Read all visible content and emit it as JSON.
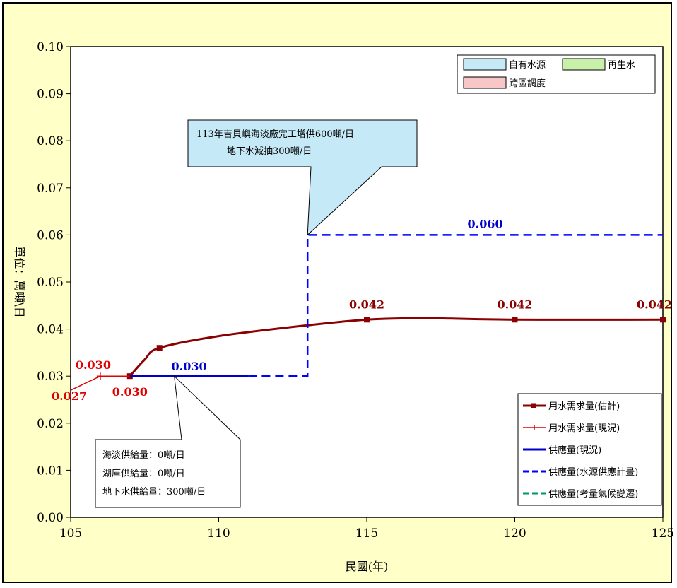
{
  "chart_data": {
    "type": "line",
    "xlabel": "民國(年)",
    "ylabel": "單位：萬噸\\日",
    "xlim": [
      105,
      125
    ],
    "ylim": [
      0,
      0.1
    ],
    "xticks": [
      "105",
      "110",
      "115",
      "120",
      "125"
    ],
    "yticks": [
      "0.00",
      "0.01",
      "0.02",
      "0.03",
      "0.04",
      "0.05",
      "0.06",
      "0.07",
      "0.08",
      "0.09",
      "0.10"
    ],
    "grid": false,
    "legend_position": "bottom-right",
    "series": [
      {
        "name": "用水需求量(估計)",
        "color": "#8b0000",
        "style": "solid",
        "points": [
          [
            107,
            0.03
          ],
          [
            107.5,
            0.0335
          ],
          [
            108,
            0.036
          ],
          [
            110,
            0.0385
          ],
          [
            113,
            0.0408
          ],
          [
            115,
            0.042
          ],
          [
            117,
            0.0423
          ],
          [
            120,
            0.042
          ],
          [
            125,
            0.042
          ]
        ],
        "markers": [
          [
            107,
            0.03
          ],
          [
            108,
            0.036
          ],
          [
            115,
            0.042
          ],
          [
            120,
            0.042
          ],
          [
            125,
            0.042
          ]
        ]
      },
      {
        "name": "用水需求量(現況)",
        "color": "#e00000",
        "style": "solid",
        "points": [
          [
            105,
            0.027
          ],
          [
            106,
            0.03
          ],
          [
            107,
            0.03
          ]
        ],
        "markers": [
          [
            106,
            0.03
          ]
        ]
      },
      {
        "name": "供應量(現況)",
        "color": "#0000cc",
        "style": "solid",
        "points": [
          [
            107,
            0.03
          ],
          [
            111,
            0.03
          ]
        ]
      },
      {
        "name": "供應量(水源供應計畫)",
        "color": "#0000ff",
        "style": "dashed",
        "points": [
          [
            111,
            0.03
          ],
          [
            113,
            0.03
          ],
          [
            113,
            0.06
          ],
          [
            125,
            0.06
          ]
        ]
      },
      {
        "name": "供應量(考量氣候變遷)",
        "color": "#009966",
        "style": "dashed",
        "points": []
      }
    ],
    "data_labels": [
      {
        "text": "0.030",
        "x": 106,
        "y": 0.03,
        "color": "#e00000",
        "dx": -10,
        "dy": -10
      },
      {
        "text": "0.027",
        "x": 105,
        "y": 0.027,
        "color": "#e00000",
        "dx": -2,
        "dy": 14
      },
      {
        "text": "0.030",
        "x": 107,
        "y": 0.03,
        "color": "#e00000",
        "dx": 0,
        "dy": 28
      },
      {
        "text": "0.030",
        "x": 109,
        "y": 0.03,
        "color": "#0000cc",
        "dx": 0,
        "dy": -8
      },
      {
        "text": "0.060",
        "x": 119,
        "y": 0.06,
        "color": "#0000cc",
        "dx": 0,
        "dy": -10
      },
      {
        "text": "0.042",
        "x": 115,
        "y": 0.042,
        "color": "#8b0000",
        "dx": 0,
        "dy": -16
      },
      {
        "text": "0.042",
        "x": 120,
        "y": 0.042,
        "color": "#8b0000",
        "dx": 0,
        "dy": -16
      },
      {
        "text": "0.042",
        "x": 125,
        "y": 0.042,
        "color": "#8b0000",
        "dx": -12,
        "dy": -16
      }
    ],
    "source_legend": [
      {
        "label": "自有水源",
        "color": "#c6e9f7"
      },
      {
        "label": "再生水",
        "color": "#c8f0a8"
      },
      {
        "label": "跨區調度",
        "color": "#f7c6c6"
      }
    ],
    "annotations": [
      {
        "lines": [
          "113年吉貝嶼海淡廠完工增供600噸/日",
          "地下水減抽300噸/日"
        ],
        "fill": "#c6e9f7",
        "point_to": [
          113,
          0.06
        ]
      },
      {
        "lines": [
          "海淡供給量：0噸/日",
          "湖庫供給量：0噸/日",
          "地下水供給量：300噸/日"
        ],
        "fill": "#ffffff",
        "point_to": [
          108.5,
          0.03
        ]
      }
    ]
  }
}
